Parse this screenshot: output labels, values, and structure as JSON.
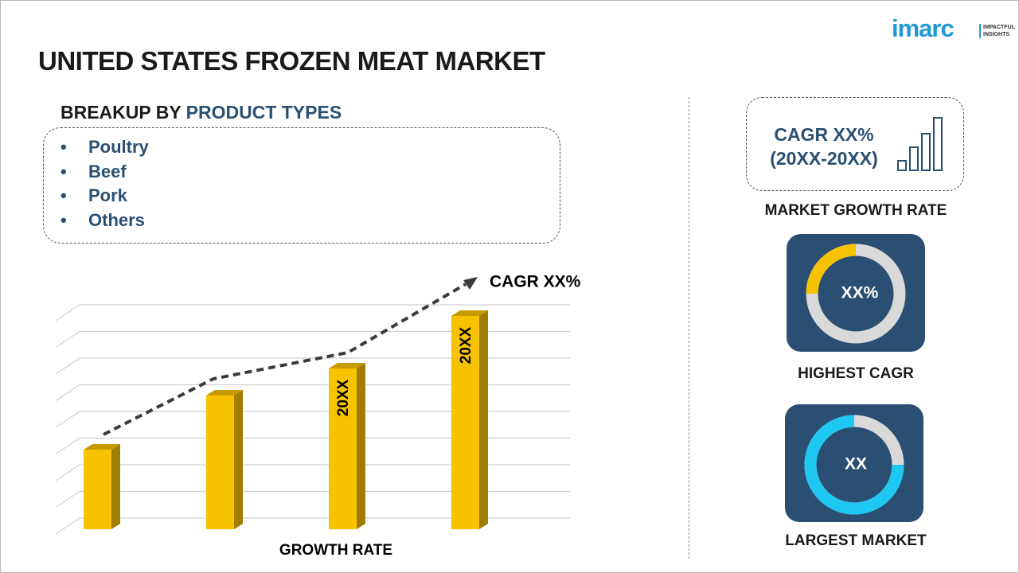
{
  "logo": {
    "brand": "imarc",
    "tagline_1": "IMPACTFUL",
    "tagline_2": "INSIGHTS"
  },
  "title": "UNITED STATES FROZEN MEAT MARKET",
  "breakup": {
    "heading_prefix": "BREAKUP BY",
    "heading_highlight": "PRODUCT TYPES",
    "items": [
      "Poultry",
      "Beef",
      "Pork",
      "Others"
    ]
  },
  "growth_chart": {
    "bar_labels": [
      "20XX",
      "20XX"
    ],
    "trend_label": "CAGR XX%",
    "axis_label": "GROWTH RATE"
  },
  "market_growth": {
    "cagr": "CAGR XX%",
    "period": "(20XX-20XX)",
    "caption": "MARKET GROWTH RATE"
  },
  "highest_cagr": {
    "value": "XX%",
    "caption": "HIGHEST CAGR"
  },
  "largest_market": {
    "value": "XX",
    "caption": "LARGEST MARKET"
  }
}
